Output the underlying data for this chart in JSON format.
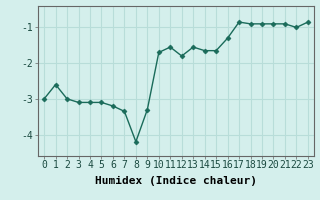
{
  "x": [
    0,
    1,
    2,
    3,
    4,
    5,
    6,
    7,
    8,
    9,
    10,
    11,
    12,
    13,
    14,
    15,
    16,
    17,
    18,
    19,
    20,
    21,
    22,
    23
  ],
  "y": [
    -3.0,
    -2.6,
    -3.0,
    -3.1,
    -3.1,
    -3.1,
    -3.2,
    -3.35,
    -4.2,
    -3.3,
    -1.7,
    -1.55,
    -1.8,
    -1.55,
    -1.65,
    -1.65,
    -1.3,
    -0.85,
    -0.9,
    -0.9,
    -0.9,
    -0.9,
    -1.0,
    -0.85
  ],
  "line_color": "#1a6b5a",
  "marker": "D",
  "marker_size": 2.5,
  "bg_color": "#d4efec",
  "grid_color": "#b8ddd9",
  "xlabel": "Humidex (Indice chaleur)",
  "xlabel_fontsize": 8,
  "ylim": [
    -4.6,
    -0.4
  ],
  "xlim": [
    -0.5,
    23.5
  ],
  "yticks": [
    -4,
    -3,
    -2,
    -1
  ],
  "xticks": [
    0,
    1,
    2,
    3,
    4,
    5,
    6,
    7,
    8,
    9,
    10,
    11,
    12,
    13,
    14,
    15,
    16,
    17,
    18,
    19,
    20,
    21,
    22,
    23
  ],
  "tick_fontsize": 7,
  "line_width": 1.0,
  "spine_color": "#666666"
}
